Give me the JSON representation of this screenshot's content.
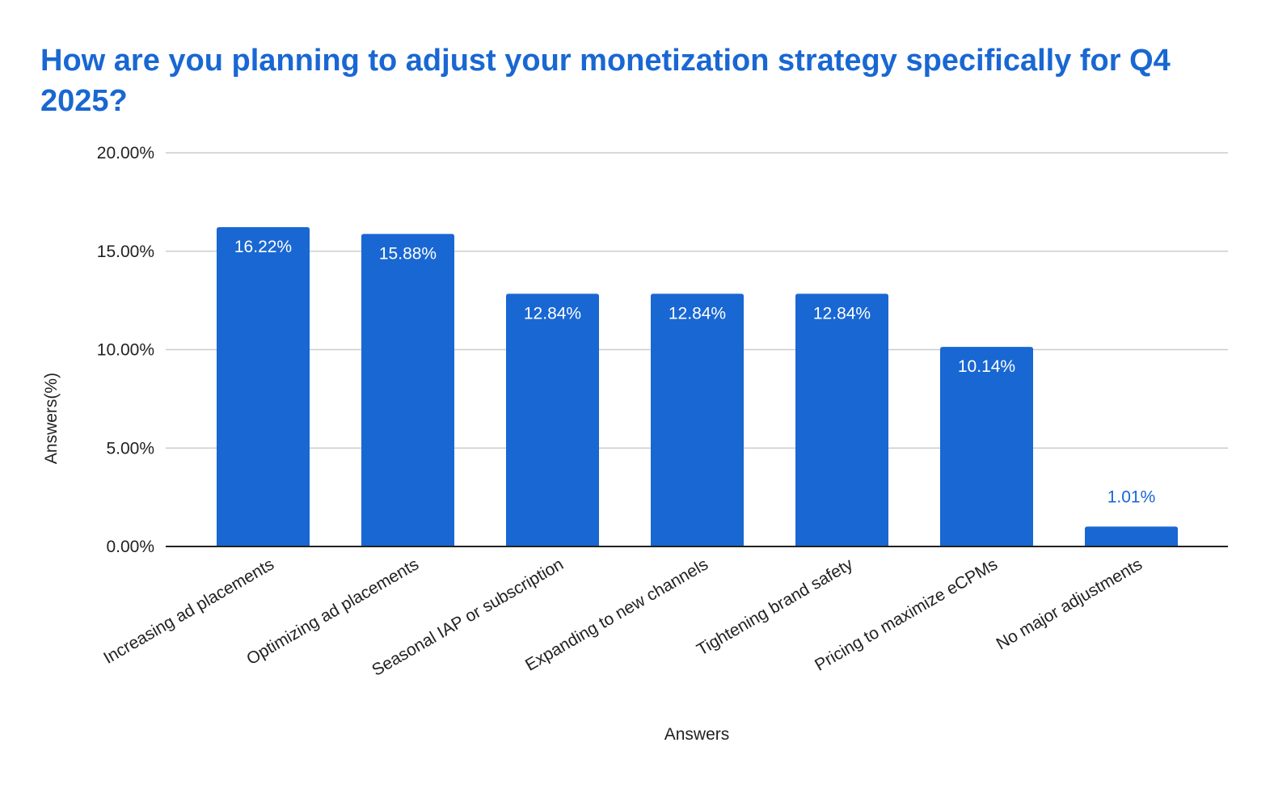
{
  "chart_data": {
    "type": "bar",
    "title": "How are you planning to adjust your monetization strategy specifically for Q4 2025?",
    "xlabel": "Answers",
    "ylabel": "Answers(%)",
    "categories": [
      "Increasing ad placements",
      "Optimizing ad placements",
      "Seasonal IAP or subscription",
      "Expanding to new channels",
      "Tightening brand safety",
      "Pricing to maximize eCPMs",
      "No major adjustments"
    ],
    "values": [
      16.22,
      15.88,
      12.84,
      12.84,
      12.84,
      10.14,
      1.01
    ],
    "data_labels": [
      "16.22%",
      "15.88%",
      "12.84%",
      "12.84%",
      "12.84%",
      "10.14%",
      "1.01%"
    ],
    "ylim": [
      0,
      20
    ],
    "yticks": [
      0,
      5,
      10,
      15,
      20
    ],
    "ytick_labels": [
      "0.00%",
      "5.00%",
      "10.00%",
      "15.00%",
      "20.00%"
    ],
    "grid": true,
    "legend": "none",
    "colors": {
      "bar": "#1967d2",
      "title": "#1967d2",
      "grid": "#cccccc",
      "axis": "#222222",
      "label_inside": "#ffffff",
      "label_outside": "#1967d2"
    }
  }
}
